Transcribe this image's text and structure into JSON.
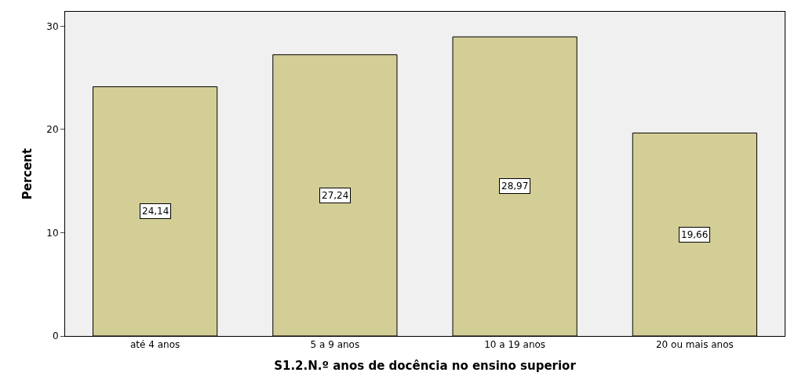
{
  "chart_data": {
    "type": "bar",
    "xlabel": "S1.2.N.º anos de docência no ensino superior",
    "ylabel": "Percent",
    "categories": [
      "até 4 anos",
      "5 a 9 anos",
      "10 a 19 anos",
      "20 ou mais anos"
    ],
    "values": [
      24.14,
      27.24,
      28.97,
      19.66
    ],
    "value_labels": [
      "24,14",
      "27,24",
      "28,97",
      "19,66"
    ],
    "color": "#d3ce96",
    "ylim": [
      0,
      31.4
    ],
    "yticks": [
      0,
      10,
      20,
      30
    ],
    "grid": false,
    "legend": false
  }
}
